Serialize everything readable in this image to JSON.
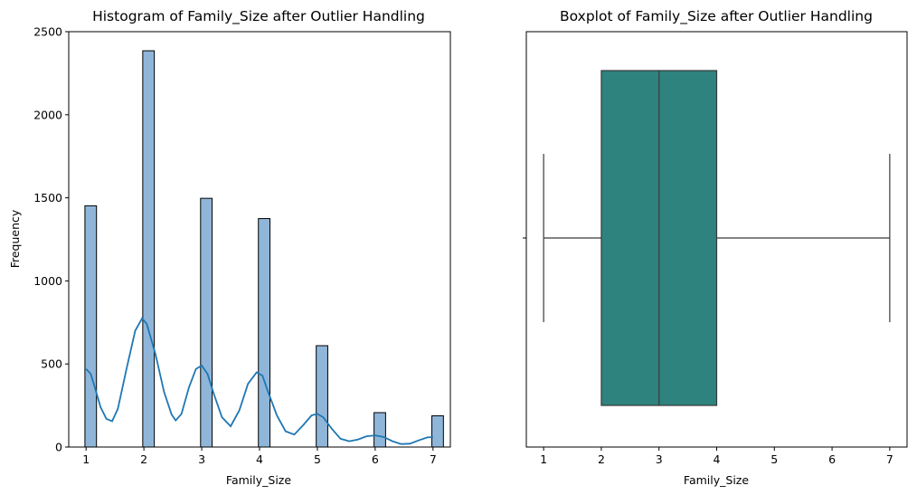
{
  "chart_data": [
    {
      "type": "bar",
      "title": "Histogram of Family_Size after Outlier Handling",
      "xlabel": "Family_Size",
      "ylabel": "Frequency",
      "xlim": [
        0.7,
        7.3
      ],
      "ylim": [
        0,
        2500
      ],
      "xticks": [
        "1",
        "2",
        "3",
        "4",
        "5",
        "6",
        "7"
      ],
      "yticks": [
        "0",
        "500",
        "1000",
        "1500",
        "2000",
        "2500"
      ],
      "bins": [
        {
          "x": 1,
          "value": 1452
        },
        {
          "x": 2,
          "value": 2385
        },
        {
          "x": 3,
          "value": 1497
        },
        {
          "x": 4,
          "value": 1375
        },
        {
          "x": 5,
          "value": 610
        },
        {
          "x": 6,
          "value": 207
        },
        {
          "x": 7,
          "value": 188
        }
      ],
      "bin_width": 0.2,
      "bar_color": "#8fb6d9",
      "kde": {
        "color": "#1f77b4",
        "points": [
          [
            1.0,
            470
          ],
          [
            1.08,
            440
          ],
          [
            1.15,
            360
          ],
          [
            1.25,
            240
          ],
          [
            1.35,
            170
          ],
          [
            1.45,
            155
          ],
          [
            1.55,
            230
          ],
          [
            1.7,
            470
          ],
          [
            1.85,
            700
          ],
          [
            1.97,
            775
          ],
          [
            2.05,
            740
          ],
          [
            2.2,
            560
          ],
          [
            2.35,
            330
          ],
          [
            2.48,
            195
          ],
          [
            2.55,
            160
          ],
          [
            2.65,
            200
          ],
          [
            2.78,
            360
          ],
          [
            2.9,
            470
          ],
          [
            3.0,
            490
          ],
          [
            3.1,
            440
          ],
          [
            3.2,
            330
          ],
          [
            3.35,
            180
          ],
          [
            3.5,
            125
          ],
          [
            3.65,
            220
          ],
          [
            3.8,
            380
          ],
          [
            3.95,
            450
          ],
          [
            4.05,
            430
          ],
          [
            4.15,
            330
          ],
          [
            4.3,
            190
          ],
          [
            4.45,
            95
          ],
          [
            4.6,
            75
          ],
          [
            4.75,
            130
          ],
          [
            4.9,
            190
          ],
          [
            5.0,
            200
          ],
          [
            5.1,
            180
          ],
          [
            5.25,
            110
          ],
          [
            5.4,
            50
          ],
          [
            5.55,
            35
          ],
          [
            5.7,
            45
          ],
          [
            5.85,
            65
          ],
          [
            6.0,
            70
          ],
          [
            6.15,
            60
          ],
          [
            6.3,
            35
          ],
          [
            6.45,
            18
          ],
          [
            6.6,
            20
          ],
          [
            6.75,
            40
          ],
          [
            6.9,
            58
          ],
          [
            7.0,
            60
          ]
        ]
      },
      "grid": false,
      "legend": "none"
    },
    {
      "type": "box",
      "title": "Boxplot of Family_Size after Outlier Handling",
      "xlabel": "Family_Size",
      "xlim": [
        0.7,
        7.3
      ],
      "xticks": [
        "1",
        "2",
        "3",
        "4",
        "5",
        "6",
        "7"
      ],
      "stats": {
        "min": 1,
        "q1": 2,
        "median": 3,
        "q3": 4,
        "max": 7
      },
      "box_color": "#2e837e",
      "grid": false,
      "legend": "none"
    }
  ]
}
